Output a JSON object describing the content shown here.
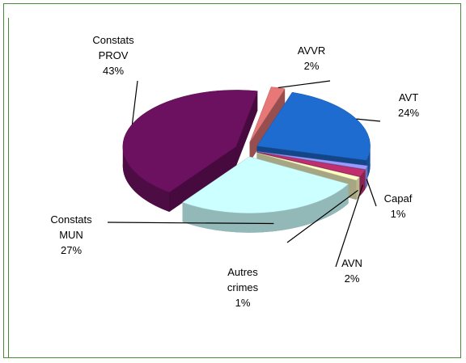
{
  "chart_data": {
    "type": "pie",
    "categories": [
      "AVVR",
      "AVT",
      "Capaf",
      "AVN",
      "Autres crimes",
      "Constats MUN",
      "Constats PROV"
    ],
    "values": [
      2,
      24,
      1,
      2,
      1,
      27,
      43
    ],
    "value_labels": [
      "2%",
      "24%",
      "1%",
      "2%",
      "1%",
      "27%",
      "43%"
    ],
    "colors": [
      "#e87878",
      "#1f6cd0",
      "#9a9aff",
      "#c03070",
      "#ffffc8",
      "#ccffff",
      "#6c1060"
    ]
  }
}
